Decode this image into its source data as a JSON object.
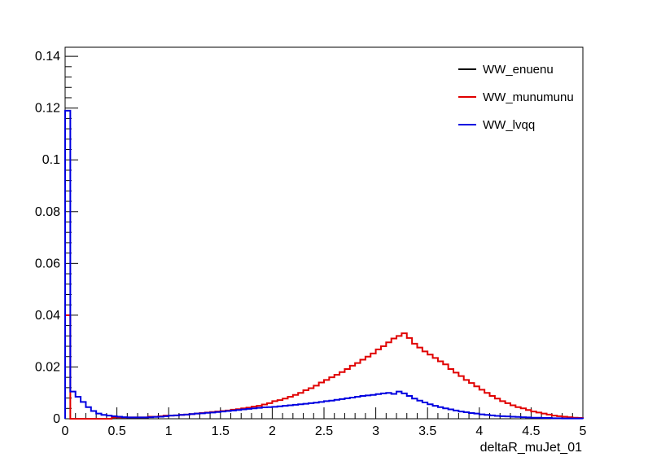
{
  "chart_data": {
    "type": "line",
    "subtype": "histogram-step",
    "title": "",
    "xlabel": "deltaR_muJet_01",
    "ylabel": "",
    "xlim": [
      0,
      5
    ],
    "ylim": [
      0,
      0.1435
    ],
    "bin_width": 0.05,
    "grid": false,
    "legend_position": "top-right",
    "x_ticks": [
      "0",
      "0.5",
      "1",
      "1.5",
      "2",
      "2.5",
      "3",
      "3.5",
      "4",
      "4.5",
      "5"
    ],
    "y_ticks": [
      "0",
      "0.02",
      "0.04",
      "0.06",
      "0.08",
      "0.1",
      "0.12",
      "0.14"
    ],
    "series": [
      {
        "name": "WW_enuenu",
        "color": "#000000",
        "values": []
      },
      {
        "name": "WW_munumunu",
        "color": "#e00000",
        "values": [
          0.04,
          0.0,
          0.0,
          0.0,
          0.0,
          0.0,
          0.0,
          0.0,
          0.0,
          0.0005,
          0.0005,
          0.0005,
          0.0005,
          0.0005,
          0.0005,
          0.0005,
          0.0008,
          0.0008,
          0.001,
          0.0012,
          0.0012,
          0.0013,
          0.0015,
          0.0016,
          0.0018,
          0.002,
          0.0022,
          0.0024,
          0.0026,
          0.0028,
          0.003,
          0.0032,
          0.0035,
          0.0037,
          0.004,
          0.0043,
          0.0047,
          0.005,
          0.0055,
          0.006,
          0.0068,
          0.0072,
          0.0078,
          0.0085,
          0.0092,
          0.01,
          0.011,
          0.0118,
          0.0128,
          0.014,
          0.015,
          0.016,
          0.017,
          0.018,
          0.0192,
          0.0205,
          0.0215,
          0.0228,
          0.024,
          0.0252,
          0.0268,
          0.028,
          0.0295,
          0.031,
          0.032,
          0.033,
          0.0312,
          0.029,
          0.0275,
          0.026,
          0.0248,
          0.0235,
          0.0222,
          0.021,
          0.0192,
          0.0178,
          0.0165,
          0.015,
          0.0138,
          0.0125,
          0.0112,
          0.01,
          0.0088,
          0.0078,
          0.0068,
          0.006,
          0.0052,
          0.0045,
          0.004,
          0.0034,
          0.0028,
          0.0024,
          0.002,
          0.0016,
          0.0012,
          0.001,
          0.0008,
          0.0006,
          0.0004,
          0.0003
        ]
      },
      {
        "name": "WW_lvqq",
        "color": "#0000e0",
        "values": [
          0.119,
          0.0105,
          0.0085,
          0.0065,
          0.0045,
          0.003,
          0.002,
          0.0015,
          0.0012,
          0.001,
          0.0008,
          0.0006,
          0.0005,
          0.0005,
          0.0005,
          0.0005,
          0.0006,
          0.0007,
          0.0008,
          0.001,
          0.0012,
          0.0013,
          0.0015,
          0.0016,
          0.0018,
          0.002,
          0.0021,
          0.0023,
          0.0024,
          0.0026,
          0.0028,
          0.003,
          0.0032,
          0.0034,
          0.0036,
          0.0038,
          0.004,
          0.0042,
          0.0044,
          0.0045,
          0.0046,
          0.0048,
          0.005,
          0.0052,
          0.0054,
          0.0056,
          0.0058,
          0.006,
          0.0062,
          0.0065,
          0.0068,
          0.007,
          0.0073,
          0.0076,
          0.0079,
          0.0082,
          0.0085,
          0.0088,
          0.009,
          0.0092,
          0.0095,
          0.0098,
          0.01,
          0.0096,
          0.0105,
          0.0098,
          0.0088,
          0.0078,
          0.007,
          0.0063,
          0.0056,
          0.005,
          0.0045,
          0.004,
          0.0036,
          0.0032,
          0.0028,
          0.0025,
          0.0022,
          0.002,
          0.0017,
          0.0015,
          0.0013,
          0.0011,
          0.001,
          0.0009,
          0.0008,
          0.0007,
          0.0006,
          0.0005,
          0.0004,
          0.0004,
          0.0003,
          0.0003,
          0.0002,
          0.0002,
          0.0001,
          0.0001,
          0.0001,
          0.0001
        ]
      }
    ]
  }
}
